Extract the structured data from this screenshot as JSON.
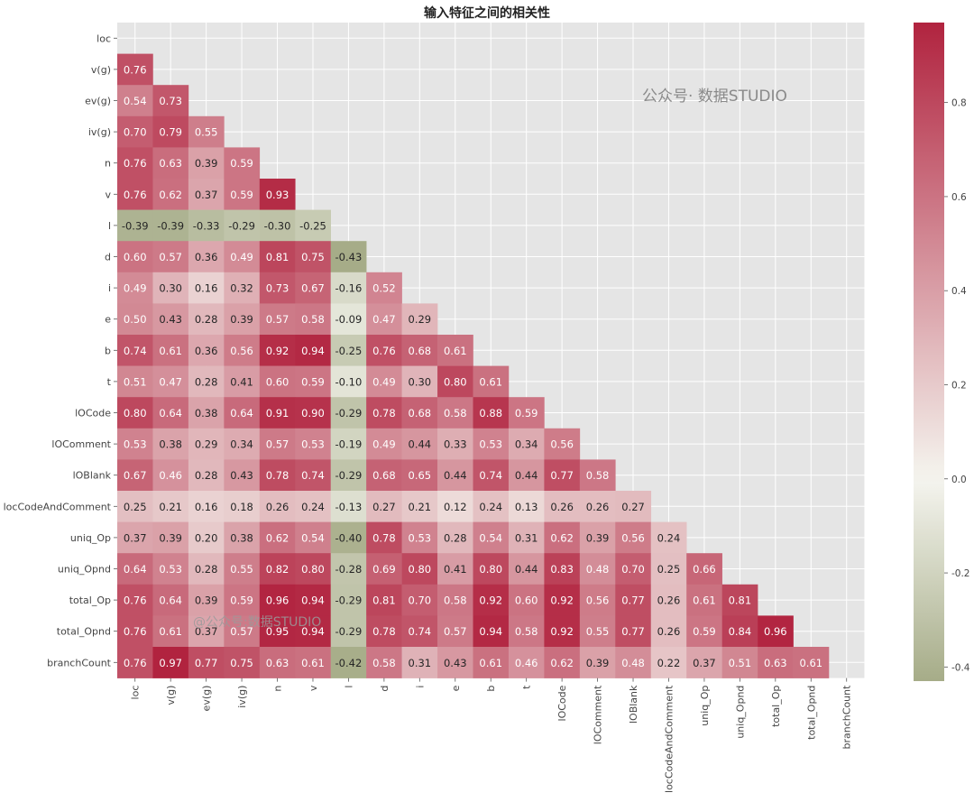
{
  "chart_data": {
    "type": "heatmap",
    "title": "输入特征之间的相关性",
    "xlabel": "",
    "ylabel": "",
    "variables": [
      "loc",
      "v(g)",
      "ev(g)",
      "iv(g)",
      "n",
      "v",
      "l",
      "d",
      "i",
      "e",
      "b",
      "t",
      "lOCode",
      "lOComment",
      "lOBlank",
      "locCodeAndComment",
      "uniq_Op",
      "uniq_Opnd",
      "total_Op",
      "total_Opnd",
      "branchCount"
    ],
    "mask": "upper-triangle-and-diagonal",
    "values": [
      [],
      [
        0.76
      ],
      [
        0.54,
        0.73
      ],
      [
        0.7,
        0.79,
        0.55
      ],
      [
        0.76,
        0.63,
        0.39,
        0.59
      ],
      [
        0.76,
        0.62,
        0.37,
        0.59,
        0.93
      ],
      [
        -0.39,
        -0.39,
        -0.33,
        -0.29,
        -0.3,
        -0.25
      ],
      [
        0.6,
        0.57,
        0.36,
        0.49,
        0.81,
        0.75,
        -0.43
      ],
      [
        0.49,
        0.3,
        0.16,
        0.32,
        0.73,
        0.67,
        -0.16,
        0.52
      ],
      [
        0.5,
        0.43,
        0.28,
        0.39,
        0.57,
        0.58,
        -0.09,
        0.47,
        0.29
      ],
      [
        0.74,
        0.61,
        0.36,
        0.56,
        0.92,
        0.94,
        -0.25,
        0.76,
        0.68,
        0.61
      ],
      [
        0.51,
        0.47,
        0.28,
        0.41,
        0.6,
        0.59,
        -0.1,
        0.49,
        0.3,
        0.8,
        0.61
      ],
      [
        0.8,
        0.64,
        0.38,
        0.64,
        0.91,
        0.9,
        -0.29,
        0.78,
        0.68,
        0.58,
        0.88,
        0.59
      ],
      [
        0.53,
        0.38,
        0.29,
        0.34,
        0.57,
        0.53,
        -0.19,
        0.49,
        0.44,
        0.33,
        0.53,
        0.34,
        0.56
      ],
      [
        0.67,
        0.46,
        0.28,
        0.43,
        0.78,
        0.74,
        -0.29,
        0.68,
        0.65,
        0.44,
        0.74,
        0.44,
        0.77,
        0.58
      ],
      [
        0.25,
        0.21,
        0.16,
        0.18,
        0.26,
        0.24,
        -0.13,
        0.27,
        0.21,
        0.12,
        0.24,
        0.13,
        0.26,
        0.26,
        0.27
      ],
      [
        0.37,
        0.39,
        0.2,
        0.38,
        0.62,
        0.54,
        -0.4,
        0.78,
        0.53,
        0.28,
        0.54,
        0.31,
        0.62,
        0.39,
        0.56,
        0.24
      ],
      [
        0.64,
        0.53,
        0.28,
        0.55,
        0.82,
        0.8,
        -0.28,
        0.69,
        0.8,
        0.41,
        0.8,
        0.44,
        0.83,
        0.48,
        0.7,
        0.25,
        0.66
      ],
      [
        0.76,
        0.64,
        0.39,
        0.59,
        0.96,
        0.94,
        -0.29,
        0.81,
        0.7,
        0.58,
        0.92,
        0.6,
        0.92,
        0.56,
        0.77,
        0.26,
        0.61,
        0.81
      ],
      [
        0.76,
        0.61,
        0.37,
        0.57,
        0.95,
        0.94,
        -0.29,
        0.78,
        0.74,
        0.57,
        0.94,
        0.58,
        0.92,
        0.55,
        0.77,
        0.26,
        0.59,
        0.84,
        0.96
      ],
      [
        0.76,
        0.97,
        0.77,
        0.75,
        0.63,
        0.61,
        -0.42,
        0.58,
        0.31,
        0.43,
        0.61,
        0.46,
        0.62,
        0.39,
        0.48,
        0.22,
        0.37,
        0.51,
        0.63,
        0.61
      ]
    ],
    "value_format": "2 decimals",
    "colorbar": {
      "range": [
        -0.43,
        0.97
      ],
      "ticks": [
        "0.8",
        "0.6",
        "0.4",
        "0.2",
        "0.0",
        "-0.2",
        "-0.4"
      ],
      "tick_values": [
        0.8,
        0.6,
        0.4,
        0.2,
        0.0,
        -0.2,
        -0.4
      ],
      "colormap": "diverging olive-white-crimson",
      "neg_color": "#a6ac88",
      "mid_color": "#f5f5ef",
      "pos_color": "#b1233f"
    },
    "grid": true,
    "background": "#e5e5e5",
    "watermarks": [
      "公众号· 数据STUDIO",
      "@公众号:数据STUDIO"
    ]
  }
}
